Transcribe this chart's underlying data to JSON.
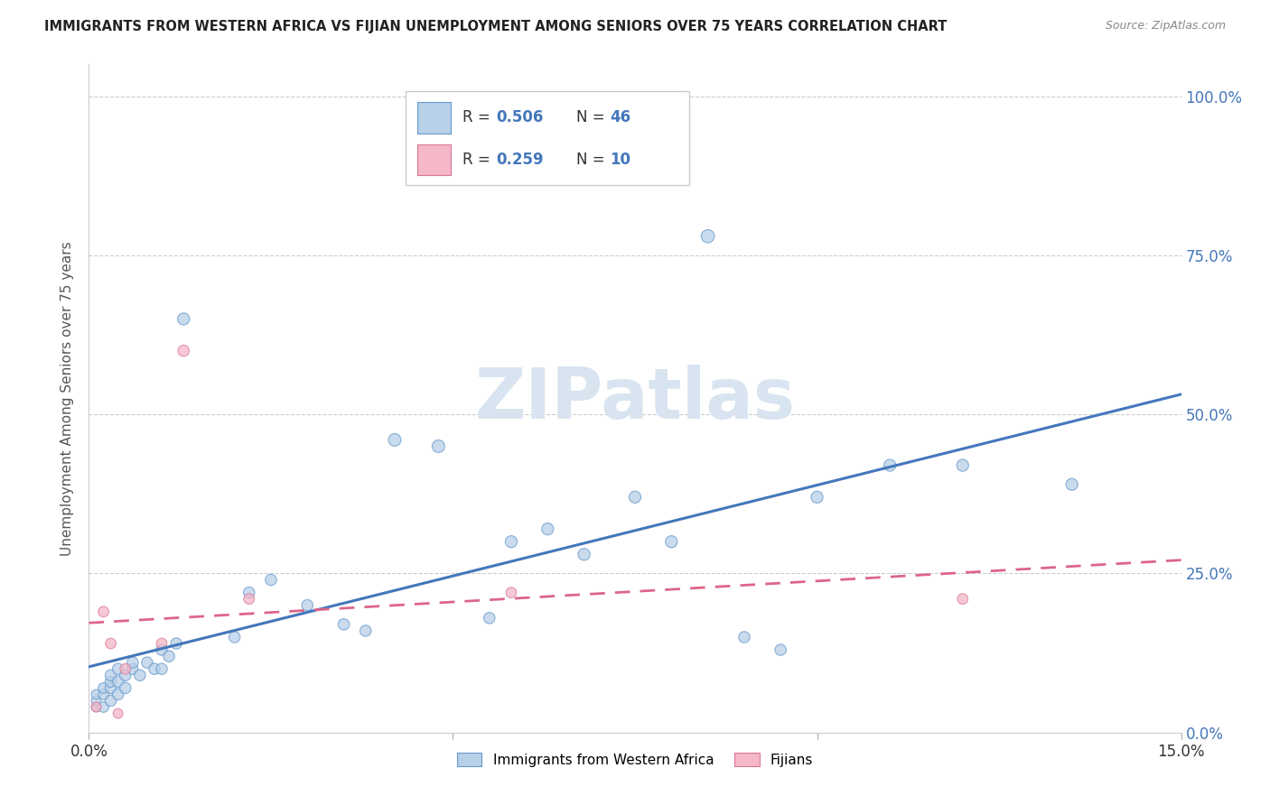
{
  "title": "IMMIGRANTS FROM WESTERN AFRICA VS FIJIAN UNEMPLOYMENT AMONG SENIORS OVER 75 YEARS CORRELATION CHART",
  "source": "Source: ZipAtlas.com",
  "ylabel": "Unemployment Among Seniors over 75 years",
  "xlim": [
    0.0,
    0.15
  ],
  "ylim": [
    0.0,
    1.05
  ],
  "yticks": [
    0.0,
    0.25,
    0.5,
    0.75,
    1.0
  ],
  "ytick_labels": [
    "0.0%",
    "25.0%",
    "50.0%",
    "75.0%",
    "100.0%"
  ],
  "xtick_positions": [
    0.0,
    0.05,
    0.1,
    0.15
  ],
  "xtick_labels": [
    "0.0%",
    "",
    "",
    "15.0%"
  ],
  "blue_r": 0.506,
  "blue_n": 46,
  "pink_r": 0.259,
  "pink_n": 10,
  "blue_fill": "#b8d0e8",
  "pink_fill": "#f4b8c8",
  "blue_edge": "#6699cc",
  "pink_edge": "#dd7799",
  "blue_line": "#4477bb",
  "pink_line": "#dd6688",
  "watermark_text": "ZIPatlas",
  "watermark_color": "#d8e4f0",
  "legend_blue": "Immigrants from Western Africa",
  "legend_pink": "Fijians",
  "blue_x": [
    0.001,
    0.001,
    0.001,
    0.002,
    0.002,
    0.002,
    0.003,
    0.003,
    0.003,
    0.003,
    0.004,
    0.004,
    0.004,
    0.005,
    0.005,
    0.006,
    0.006,
    0.007,
    0.008,
    0.009,
    0.01,
    0.01,
    0.011,
    0.012,
    0.013,
    0.02,
    0.022,
    0.025,
    0.03,
    0.035,
    0.038,
    0.042,
    0.048,
    0.055,
    0.058,
    0.063,
    0.068,
    0.075,
    0.08,
    0.085,
    0.09,
    0.095,
    0.1,
    0.11,
    0.12,
    0.135
  ],
  "blue_y": [
    0.04,
    0.05,
    0.06,
    0.04,
    0.06,
    0.07,
    0.05,
    0.07,
    0.08,
    0.09,
    0.06,
    0.08,
    0.1,
    0.07,
    0.09,
    0.1,
    0.11,
    0.09,
    0.11,
    0.1,
    0.1,
    0.13,
    0.12,
    0.14,
    0.65,
    0.15,
    0.22,
    0.24,
    0.2,
    0.17,
    0.16,
    0.46,
    0.45,
    0.18,
    0.3,
    0.32,
    0.28,
    0.37,
    0.3,
    0.78,
    0.15,
    0.13,
    0.37,
    0.42,
    0.42,
    0.39
  ],
  "pink_x": [
    0.001,
    0.002,
    0.003,
    0.004,
    0.005,
    0.01,
    0.013,
    0.022,
    0.058,
    0.12
  ],
  "pink_y": [
    0.04,
    0.19,
    0.14,
    0.03,
    0.1,
    0.14,
    0.6,
    0.21,
    0.22,
    0.21
  ],
  "blue_sizes": [
    60,
    60,
    60,
    70,
    70,
    70,
    80,
    80,
    80,
    80,
    80,
    80,
    80,
    80,
    80,
    80,
    80,
    80,
    80,
    80,
    80,
    80,
    80,
    80,
    90,
    80,
    80,
    80,
    80,
    80,
    80,
    100,
    100,
    80,
    90,
    90,
    90,
    90,
    90,
    110,
    80,
    80,
    90,
    90,
    90,
    90
  ],
  "pink_sizes": [
    60,
    70,
    70,
    60,
    70,
    70,
    80,
    70,
    70,
    70
  ]
}
